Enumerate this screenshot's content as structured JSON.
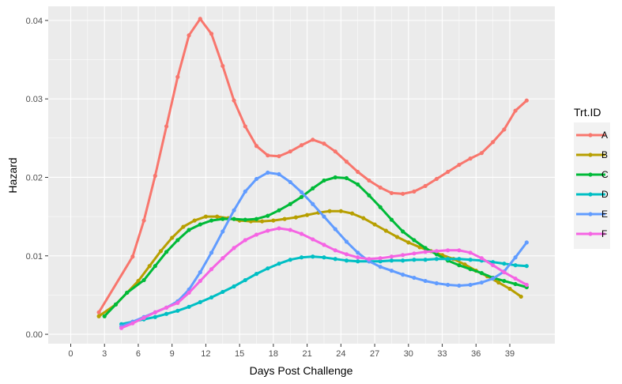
{
  "chart_data": {
    "type": "line",
    "xlabel": "Days Post Challenge",
    "ylabel": "Hazard",
    "xlim": [
      -2,
      43
    ],
    "ylim": [
      -0.0012,
      0.0418
    ],
    "x_ticks": [
      0,
      3,
      6,
      9,
      12,
      15,
      18,
      21,
      24,
      27,
      30,
      33,
      36,
      39
    ],
    "y_ticks": [
      0.0,
      0.01,
      0.02,
      0.03,
      0.04
    ],
    "y_tick_labels": [
      "0.00",
      "0.01",
      "0.02",
      "0.03",
      "0.04"
    ],
    "grid": true,
    "legend": {
      "title": "Trt.ID",
      "position": "right"
    },
    "series": [
      {
        "name": "A",
        "color": "#F8766D",
        "x": [
          2.5,
          5.5,
          6.5,
          7.5,
          8.5,
          9.5,
          10.5,
          11.5,
          12.5,
          13.5,
          14.5,
          15.5,
          16.5,
          17.5,
          18.5,
          19.5,
          20.5,
          21.5,
          22.5,
          23.5,
          24.5,
          25.5,
          26.5,
          27.5,
          28.5,
          29.5,
          30.5,
          31.5,
          32.5,
          33.5,
          34.5,
          35.5,
          36.5,
          37.5,
          38.5,
          39.5,
          40.5
        ],
        "y": [
          0.0028,
          0.0099,
          0.0145,
          0.0202,
          0.0265,
          0.0328,
          0.0381,
          0.0402,
          0.0383,
          0.0342,
          0.0298,
          0.0265,
          0.024,
          0.0228,
          0.0227,
          0.0233,
          0.0241,
          0.0248,
          0.0243,
          0.0233,
          0.022,
          0.0207,
          0.0196,
          0.0187,
          0.018,
          0.0179,
          0.0182,
          0.0189,
          0.0198,
          0.0207,
          0.0216,
          0.0224,
          0.0231,
          0.0245,
          0.0261,
          0.0285,
          0.0298
        ]
      },
      {
        "name": "B",
        "color": "#B79F00",
        "x": [
          2.5,
          4.0,
          5.0,
          6.0,
          7.0,
          8.0,
          9.0,
          10.0,
          11.0,
          12.0,
          13.0,
          14.0,
          15.0,
          16.0,
          17.0,
          18.0,
          19.0,
          20.0,
          21.0,
          22.0,
          23.0,
          24.0,
          25.0,
          26.0,
          27.0,
          28.0,
          29.0,
          30.0,
          31.0,
          32.0,
          33.0,
          34.0,
          35.0,
          36.0,
          37.0,
          38.0,
          39.0,
          40.0
        ],
        "y": [
          0.0023,
          0.0038,
          0.0053,
          0.0068,
          0.0087,
          0.0106,
          0.0123,
          0.0137,
          0.0145,
          0.015,
          0.015,
          0.0148,
          0.0145,
          0.0144,
          0.0144,
          0.0145,
          0.0147,
          0.0149,
          0.0152,
          0.0155,
          0.0157,
          0.0157,
          0.0154,
          0.0148,
          0.014,
          0.0132,
          0.0124,
          0.0117,
          0.0111,
          0.0106,
          0.0101,
          0.0096,
          0.0089,
          0.0081,
          0.0074,
          0.0066,
          0.0058,
          0.0048
        ]
      },
      {
        "name": "C",
        "color": "#00BA38",
        "x": [
          3.0,
          4.0,
          5.0,
          6.5,
          7.5,
          8.5,
          9.5,
          10.5,
          11.5,
          12.5,
          13.5,
          14.5,
          15.5,
          16.5,
          17.5,
          18.5,
          19.5,
          20.5,
          21.5,
          22.5,
          23.5,
          24.5,
          25.5,
          26.5,
          27.5,
          28.5,
          29.5,
          30.5,
          31.5,
          32.5,
          33.5,
          34.5,
          35.5,
          36.5,
          37.5,
          38.5,
          39.5,
          40.5
        ],
        "y": [
          0.0023,
          0.0038,
          0.0053,
          0.0069,
          0.0087,
          0.0105,
          0.012,
          0.0133,
          0.014,
          0.0145,
          0.0147,
          0.0147,
          0.0146,
          0.0147,
          0.0151,
          0.0158,
          0.0166,
          0.0175,
          0.0186,
          0.0196,
          0.02,
          0.0199,
          0.0191,
          0.0177,
          0.0162,
          0.0146,
          0.0131,
          0.012,
          0.011,
          0.0102,
          0.0094,
          0.0088,
          0.0083,
          0.0078,
          0.0072,
          0.0068,
          0.0064,
          0.006
        ]
      },
      {
        "name": "D",
        "color": "#00BFC4",
        "x": [
          4.5,
          5.5,
          6.5,
          7.5,
          8.5,
          9.5,
          10.5,
          11.5,
          12.5,
          13.5,
          14.5,
          15.5,
          16.5,
          17.5,
          18.5,
          19.5,
          20.5,
          21.5,
          22.5,
          23.5,
          24.5,
          25.5,
          26.5,
          27.5,
          28.5,
          29.5,
          30.5,
          31.5,
          32.5,
          33.5,
          34.5,
          35.5,
          36.5,
          37.5,
          38.5,
          39.5,
          40.5
        ],
        "y": [
          0.0013,
          0.0016,
          0.0019,
          0.0022,
          0.0026,
          0.003,
          0.0035,
          0.0041,
          0.0047,
          0.0054,
          0.0061,
          0.0069,
          0.0077,
          0.0084,
          0.009,
          0.0095,
          0.0098,
          0.0099,
          0.0098,
          0.0096,
          0.0094,
          0.0093,
          0.0093,
          0.0093,
          0.0094,
          0.0094,
          0.0095,
          0.0095,
          0.0096,
          0.0096,
          0.0096,
          0.0095,
          0.0094,
          0.0092,
          0.009,
          0.0088,
          0.0087
        ]
      },
      {
        "name": "E",
        "color": "#619CFF",
        "x": [
          4.5,
          5.5,
          6.5,
          7.5,
          8.5,
          9.5,
          10.5,
          11.5,
          12.5,
          13.5,
          14.5,
          15.5,
          16.5,
          17.5,
          18.5,
          19.5,
          20.5,
          21.5,
          22.5,
          23.5,
          24.5,
          25.5,
          26.5,
          27.5,
          28.5,
          29.5,
          30.5,
          31.5,
          32.5,
          33.5,
          34.5,
          35.5,
          36.5,
          37.5,
          38.5,
          39.5,
          40.5
        ],
        "y": [
          0.001,
          0.0016,
          0.0022,
          0.0028,
          0.0034,
          0.0042,
          0.0057,
          0.0079,
          0.0104,
          0.0131,
          0.0158,
          0.0182,
          0.0198,
          0.0206,
          0.0204,
          0.0194,
          0.0181,
          0.0166,
          0.015,
          0.0134,
          0.0118,
          0.0104,
          0.0093,
          0.0086,
          0.0081,
          0.0076,
          0.0072,
          0.0068,
          0.0065,
          0.0063,
          0.0062,
          0.0063,
          0.0066,
          0.0071,
          0.008,
          0.0098,
          0.0117
        ]
      },
      {
        "name": "F",
        "color": "#F564E3",
        "x": [
          4.5,
          5.5,
          6.5,
          7.5,
          8.5,
          9.5,
          10.5,
          11.5,
          12.5,
          13.5,
          14.5,
          15.5,
          16.5,
          17.5,
          18.5,
          19.5,
          20.5,
          21.5,
          22.5,
          23.5,
          24.5,
          25.5,
          26.5,
          27.5,
          28.5,
          29.5,
          30.5,
          31.5,
          32.5,
          33.5,
          34.5,
          35.5,
          36.5,
          37.5,
          38.5,
          39.5,
          40.5
        ],
        "y": [
          0.0008,
          0.0014,
          0.0021,
          0.0028,
          0.0034,
          0.004,
          0.0053,
          0.0068,
          0.0083,
          0.0097,
          0.011,
          0.012,
          0.0127,
          0.0132,
          0.0135,
          0.0133,
          0.0128,
          0.0121,
          0.0114,
          0.0107,
          0.0102,
          0.0098,
          0.0096,
          0.0097,
          0.0099,
          0.0101,
          0.0103,
          0.0105,
          0.0106,
          0.0107,
          0.0107,
          0.0104,
          0.0097,
          0.0088,
          0.0079,
          0.0071,
          0.0063
        ]
      }
    ]
  }
}
